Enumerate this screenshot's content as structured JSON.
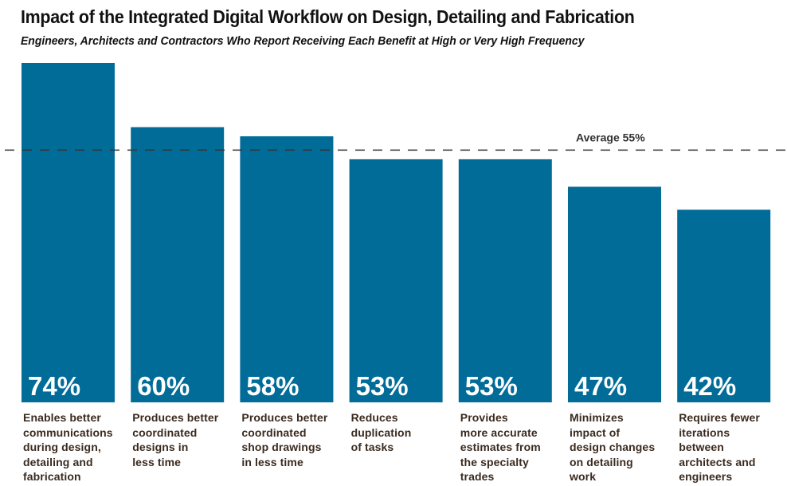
{
  "chart_data": {
    "type": "bar",
    "title": "Impact of the Integrated Digital Workflow on Design, Detailing and Fabrication",
    "subtitle": "Engineers, Architects and Contractors Who Report Receiving Each Benefit at High or Very High Frequency",
    "xlabel": "",
    "ylabel": "",
    "ylim": [
      0,
      74
    ],
    "grid": false,
    "legend": "none",
    "bar_color": "#026c99",
    "categories": [
      "Enables better\ncommunications\nduring design,\ndetailing and\nfabrication",
      "Produces better\ncoordinated\ndesigns in\nless time",
      "Produces better\ncoordinated\nshop drawings\nin less time",
      "Reduces\nduplication\nof tasks",
      "Provides\nmore accurate\nestimates from\nthe specialty\ntrades",
      "Minimizes\nimpact of\ndesign changes\non detailing\nwork",
      "Requires fewer\niterations\nbetween\narchitects and\nengineers"
    ],
    "values": [
      74,
      60,
      58,
      53,
      53,
      47,
      42
    ],
    "value_labels": [
      "74%",
      "60%",
      "58%",
      "53%",
      "53%",
      "47%",
      "42%"
    ],
    "reference_line": {
      "value": 55,
      "label": "Average 55%",
      "style": "dashed"
    }
  }
}
